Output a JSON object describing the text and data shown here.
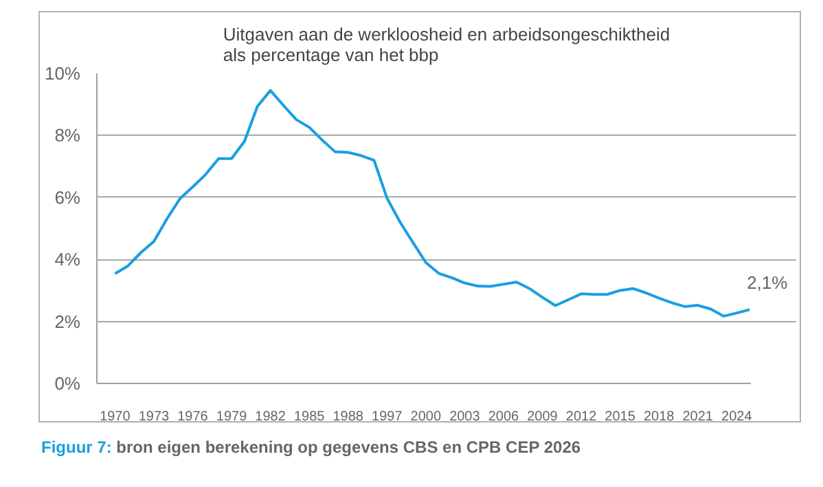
{
  "chart_data": {
    "type": "line",
    "title": "Uitgaven aan de werkloosheid en arbeidsongeschiktheid\nals percentage van het bbp",
    "categories": [
      "1970",
      null,
      null,
      "1973",
      null,
      null,
      "1976",
      null,
      null,
      "1979",
      null,
      null,
      "1982",
      null,
      null,
      "1985",
      null,
      null,
      "1988",
      null,
      null,
      "1997",
      null,
      null,
      "2000",
      null,
      null,
      "2003",
      null,
      null,
      "2006",
      null,
      null,
      "2009",
      null,
      null,
      "2012",
      null,
      null,
      "2015",
      null,
      null,
      "2018",
      null,
      null,
      "2021",
      null,
      null,
      "2024",
      null
    ],
    "values": [
      3.54,
      3.79,
      4.22,
      4.58,
      5.3,
      5.95,
      6.34,
      6.74,
      7.25,
      7.25,
      7.81,
      8.94,
      9.45,
      8.97,
      8.51,
      8.26,
      7.85,
      7.47,
      7.45,
      7.35,
      7.2,
      5.98,
      5.21,
      4.55,
      3.9,
      3.55,
      3.41,
      3.24,
      3.14,
      3.13,
      3.2,
      3.27,
      3.06,
      2.78,
      2.51,
      2.7,
      2.89,
      2.87,
      2.87,
      3.0,
      3.06,
      2.92,
      2.75,
      2.6,
      2.48,
      2.52,
      2.4,
      2.17,
      2.27,
      2.38
    ],
    "color": "#1a9fe0",
    "marker": "none",
    "line_style": "solid",
    "ylim": [
      0,
      10
    ],
    "yticks": [
      {
        "value": 0,
        "label": "0%"
      },
      {
        "value": 2,
        "label": "2%"
      },
      {
        "value": 4,
        "label": "4%"
      },
      {
        "value": 6,
        "label": "6%"
      },
      {
        "value": 8,
        "label": "8%"
      },
      {
        "value": 10,
        "label": "10%"
      }
    ],
    "grid": "y",
    "annotations": [
      "2,1%",
      "Figuur 7: bron eigen berekening op gegevens CBS en CPB CEP 2026"
    ]
  }
}
